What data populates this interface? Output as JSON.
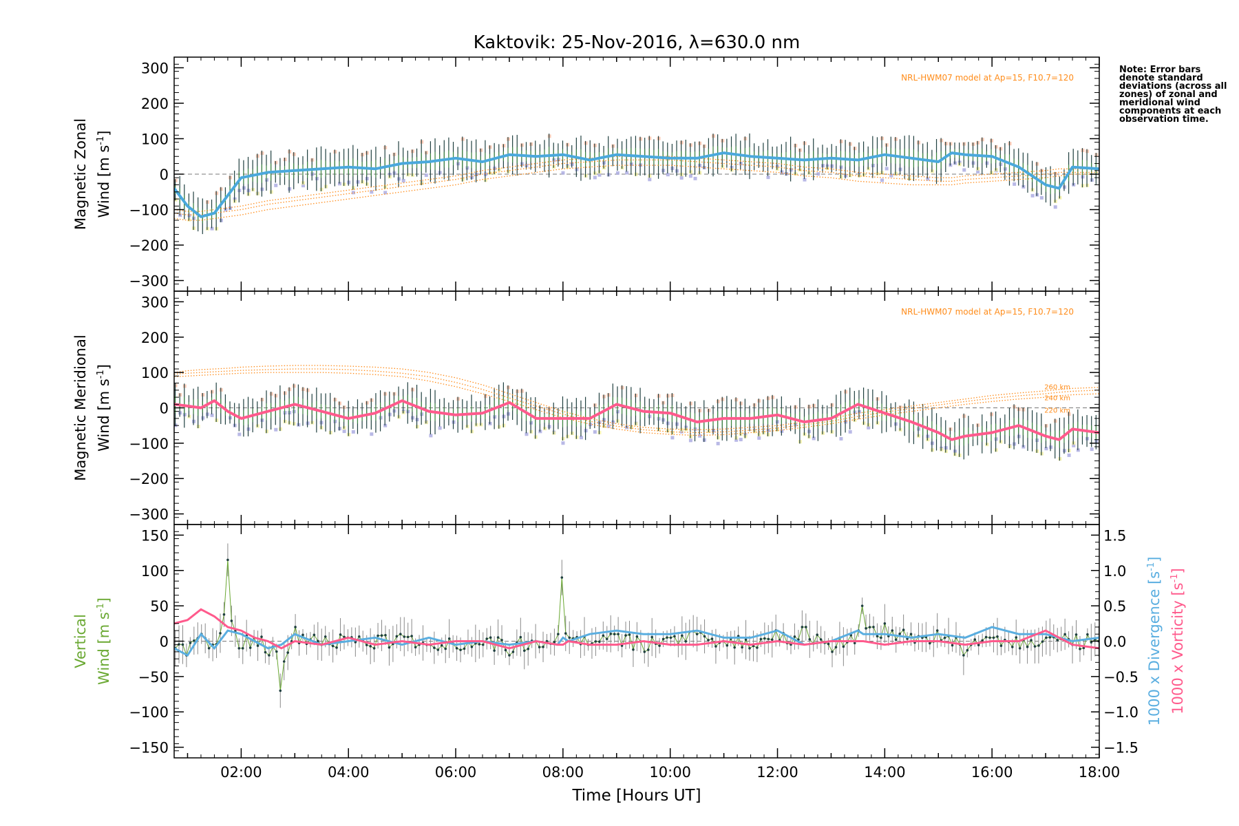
{
  "title": "Kaktovik: 25-Nov-2016, λ=630.0 nm",
  "note": "Note: Error bars denote standard deviations (across all zones) of zonal and meridional wind components at each observation time.",
  "x_axis": {
    "label": "Time [Hours UT]",
    "ticks": [
      "02:00",
      "04:00",
      "06:00",
      "08:00",
      "10:00",
      "12:00",
      "14:00",
      "16:00",
      "18:00"
    ],
    "range": [
      0.75,
      18.0
    ]
  },
  "colors": {
    "zonal_mean": "#4aa8dc",
    "meridional_mean": "#ff5a8c",
    "vertical": "#6aa832",
    "divergence": "#5aaee0",
    "vorticity": "#ff5a8c",
    "model": "#ff8c1a",
    "errorbar": "#1f3f3f",
    "scatter": "#a8a8e0"
  },
  "chart_data": [
    {
      "type": "line",
      "panel": "zonal",
      "ylabel_line1": "Magnetic Zonal",
      "ylabel_line2": "Wind [m s",
      "ylabel_sup": "-1",
      "ylabel_close": "]",
      "ylim": [
        -330,
        330
      ],
      "yticks": [
        300,
        200,
        100,
        0,
        -100,
        -200,
        -300
      ],
      "model_label": "NRL-HWM07 model at Ap=15, F10.7=120",
      "x": [
        0.75,
        1.0,
        1.25,
        1.5,
        1.75,
        2.0,
        2.5,
        3.0,
        3.5,
        4.0,
        4.5,
        5.0,
        5.5,
        6.0,
        6.5,
        7.0,
        7.5,
        8.0,
        8.5,
        9.0,
        9.5,
        10.0,
        10.5,
        11.0,
        11.5,
        12.0,
        12.5,
        13.0,
        13.5,
        14.0,
        14.5,
        15.0,
        15.25,
        15.5,
        16.0,
        16.5,
        17.0,
        17.25,
        17.5,
        18.0
      ],
      "series": [
        {
          "values": [
            -40,
            -90,
            -120,
            -110,
            -60,
            -10,
            5,
            10,
            15,
            20,
            15,
            30,
            35,
            45,
            35,
            55,
            50,
            55,
            40,
            55,
            50,
            45,
            45,
            60,
            50,
            45,
            40,
            45,
            40,
            55,
            45,
            35,
            60,
            55,
            50,
            20,
            -30,
            -40,
            20,
            15
          ]
        }
      ],
      "models": [
        {
          "name": "",
          "values": [
            -110,
            -115,
            -115,
            -110,
            -105,
            -100,
            -85,
            -75,
            -65,
            -55,
            -45,
            -35,
            -25,
            -15,
            0,
            10,
            20,
            30,
            35,
            40,
            40,
            40,
            35,
            30,
            25,
            20,
            10,
            5,
            -5,
            -10,
            -15,
            -20,
            -20,
            -15,
            -10,
            -5,
            0,
            5,
            5,
            5
          ]
        },
        {
          "name": "",
          "values": [
            -125,
            -130,
            -130,
            -125,
            -120,
            -115,
            -100,
            -90,
            -80,
            -70,
            -60,
            -50,
            -40,
            -30,
            -15,
            -5,
            5,
            15,
            20,
            25,
            25,
            25,
            20,
            15,
            10,
            5,
            -5,
            -10,
            -20,
            -25,
            -30,
            -30,
            -30,
            -25,
            -20,
            -15,
            -10,
            -5,
            0,
            0
          ]
        },
        {
          "name": "",
          "values": [
            -100,
            -105,
            -105,
            -100,
            -95,
            -90,
            -75,
            -65,
            -55,
            -45,
            -35,
            -25,
            -15,
            -5,
            10,
            20,
            30,
            40,
            45,
            50,
            50,
            50,
            45,
            40,
            35,
            30,
            20,
            15,
            5,
            0,
            -5,
            -10,
            -10,
            -5,
            0,
            5,
            10,
            15,
            15,
            15
          ]
        }
      ]
    },
    {
      "type": "line",
      "panel": "meridional",
      "ylabel_line1": "Magnetic Meridional",
      "ylabel_line2": "Wind [m s",
      "ylabel_sup": "-1",
      "ylabel_close": "]",
      "ylim": [
        -330,
        330
      ],
      "yticks": [
        300,
        200,
        100,
        0,
        -100,
        -200,
        -300
      ],
      "model_label": "NRL-HWM07 model at Ap=15, F10.7=120",
      "x": [
        0.75,
        1.0,
        1.25,
        1.5,
        1.75,
        2.0,
        2.5,
        3.0,
        3.5,
        4.0,
        4.5,
        5.0,
        5.5,
        6.0,
        6.5,
        7.0,
        7.5,
        8.0,
        8.5,
        9.0,
        9.5,
        10.0,
        10.5,
        11.0,
        11.5,
        12.0,
        12.5,
        13.0,
        13.5,
        14.0,
        14.5,
        15.0,
        15.25,
        15.5,
        16.0,
        16.5,
        17.0,
        17.25,
        17.5,
        18.0
      ],
      "series": [
        {
          "values": [
            10,
            5,
            0,
            20,
            -10,
            -30,
            -10,
            10,
            -10,
            -30,
            -15,
            20,
            -10,
            -20,
            -15,
            15,
            -30,
            -30,
            -30,
            10,
            -10,
            -15,
            -40,
            -30,
            -30,
            -20,
            -40,
            -30,
            10,
            -15,
            -40,
            -70,
            -90,
            -80,
            -70,
            -50,
            -80,
            -90,
            -60,
            -70
          ]
        }
      ],
      "models": [
        {
          "name": "260 km",
          "values": [
            100,
            105,
            108,
            110,
            112,
            115,
            118,
            120,
            120,
            118,
            115,
            110,
            100,
            85,
            65,
            40,
            15,
            -10,
            -30,
            -45,
            -55,
            -60,
            -62,
            -60,
            -55,
            -50,
            -40,
            -30,
            -15,
            -5,
            5,
            15,
            20,
            25,
            35,
            42,
            48,
            52,
            55,
            58
          ]
        },
        {
          "name": "240 km",
          "values": [
            95,
            98,
            100,
            102,
            104,
            106,
            108,
            110,
            110,
            108,
            104,
            98,
            88,
            72,
            52,
            28,
            5,
            -18,
            -38,
            -52,
            -62,
            -68,
            -70,
            -68,
            -63,
            -57,
            -48,
            -38,
            -24,
            -12,
            -2,
            8,
            13,
            18,
            27,
            34,
            40,
            44,
            47,
            50
          ]
        },
        {
          "name": "220 km",
          "values": [
            88,
            90,
            92,
            94,
            96,
            98,
            100,
            100,
            100,
            98,
            94,
            88,
            76,
            60,
            40,
            18,
            -5,
            -28,
            -46,
            -60,
            -70,
            -75,
            -78,
            -76,
            -70,
            -64,
            -55,
            -45,
            -32,
            -20,
            -10,
            0,
            5,
            10,
            18,
            25,
            30,
            34,
            37,
            40
          ]
        }
      ]
    },
    {
      "type": "line",
      "panel": "vertical",
      "ylabel_line1": "Vertical",
      "ylabel_line2": "Wind [m s",
      "ylabel_sup": "-1",
      "ylabel_close": "]",
      "ylim": [
        -165,
        165
      ],
      "yticks": [
        150,
        100,
        50,
        0,
        -50,
        -100,
        -150
      ],
      "y2lim": [
        -1.65,
        1.65
      ],
      "y2ticks": [
        1.5,
        1.0,
        0.5,
        0.0,
        -0.5,
        -1.0,
        -1.5
      ],
      "y2ticklabels": [
        "1.5",
        "1.0",
        "0.5",
        "0.0",
        "−0.5",
        "−1.0",
        "−1.5"
      ],
      "y2label_div": "1000 x Divergence [s",
      "y2label_vor": "1000 x Vorticity [s",
      "y2label_sup": "-1",
      "y2label_close": "]",
      "x": [
        0.75,
        1.0,
        1.25,
        1.5,
        1.75,
        2.0,
        2.25,
        2.5,
        2.75,
        3.0,
        3.5,
        4.0,
        4.5,
        5.0,
        5.5,
        6.0,
        6.5,
        7.0,
        7.5,
        7.9,
        8.0,
        8.1,
        8.5,
        9.0,
        9.5,
        10.0,
        10.5,
        11.0,
        11.5,
        12.0,
        12.5,
        13.0,
        13.5,
        13.6,
        14.0,
        14.5,
        15.0,
        15.5,
        16.0,
        16.5,
        17.0,
        17.5,
        18.0
      ],
      "series": [
        {
          "name": "vertical",
          "values": [
            -10,
            -20,
            10,
            -5,
            115,
            -10,
            5,
            -20,
            -70,
            20,
            -5,
            5,
            -10,
            10,
            -5,
            -10,
            -5,
            -20,
            0,
            10,
            90,
            5,
            -5,
            10,
            -15,
            5,
            10,
            0,
            -10,
            15,
            20,
            -15,
            15,
            50,
            25,
            10,
            15,
            -20,
            5,
            -10,
            5,
            -5,
            0
          ]
        },
        {
          "name": "divergence",
          "values": [
            -0.1,
            -0.2,
            0.1,
            -0.1,
            0.15,
            0.1,
            0.0,
            -0.1,
            -0.05,
            0.1,
            -0.05,
            0.0,
            0.05,
            -0.05,
            0.05,
            -0.05,
            0.0,
            -0.05,
            0.0,
            -0.05,
            0.05,
            0.0,
            0.1,
            0.15,
            0.1,
            0.1,
            0.15,
            0.05,
            0.05,
            0.15,
            -0.05,
            0.0,
            0.15,
            0.1,
            0.1,
            0.05,
            0.1,
            0.05,
            0.2,
            0.1,
            0.1,
            0.0,
            0.05
          ]
        },
        {
          "name": "vorticity",
          "values": [
            0.25,
            0.3,
            0.45,
            0.35,
            0.2,
            0.15,
            0.05,
            0.0,
            -0.1,
            0.0,
            -0.05,
            0.05,
            -0.05,
            0.0,
            -0.05,
            0.0,
            0.0,
            -0.1,
            0.0,
            -0.05,
            -0.05,
            0.0,
            -0.05,
            -0.05,
            0.0,
            -0.05,
            -0.05,
            0.0,
            -0.05,
            0.0,
            -0.05,
            0.0,
            0.0,
            0.0,
            -0.05,
            0.0,
            0.0,
            -0.05,
            0.0,
            0.0,
            0.15,
            -0.05,
            -0.1
          ]
        }
      ]
    }
  ]
}
